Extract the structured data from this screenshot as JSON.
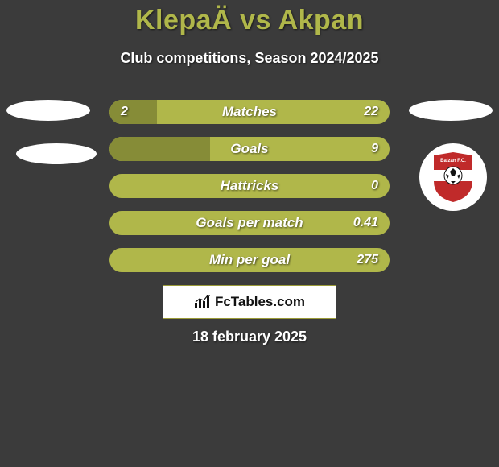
{
  "background_color": "#3b3b3b",
  "title": {
    "text": "KlepaÄ vs Akpan",
    "color": "#b0b74a",
    "fontsize": 34
  },
  "subtitle": {
    "text": "Club competitions, Season 2024/2025",
    "color": "#ffffff",
    "fontsize": 18
  },
  "left_player": {
    "ellipse_color": "#ffffff"
  },
  "right_player": {
    "ellipse_color": "#ffffff",
    "badge": {
      "name": "Balzan F.C.",
      "bg": "#ffffff",
      "shield_top": "#c02a2a",
      "shield_band": "#ffffff",
      "shield_bottom": "#c02a2a",
      "ball_bg": "#ffffff",
      "ball_stroke": "#111111"
    }
  },
  "bars": {
    "track_color": "#b0b74a",
    "fill_color": "#868c37",
    "label_color": "#ffffff",
    "value_color": "#ffffff",
    "rows": [
      {
        "label": "Matches",
        "left": "2",
        "right": "22",
        "left_pct": 17
      },
      {
        "label": "Goals",
        "left": "",
        "right": "9",
        "left_pct": 36
      },
      {
        "label": "Hattricks",
        "left": "",
        "right": "0",
        "left_pct": 0
      },
      {
        "label": "Goals per match",
        "left": "",
        "right": "0.41",
        "left_pct": 0
      },
      {
        "label": "Min per goal",
        "left": "",
        "right": "275",
        "left_pct": 0
      }
    ]
  },
  "brand": {
    "text": "FcTables.com",
    "icon_color": "#111111",
    "bg": "#ffffff",
    "border": "#9a9a37"
  },
  "date": {
    "text": "18 february 2025",
    "color": "#ffffff"
  }
}
